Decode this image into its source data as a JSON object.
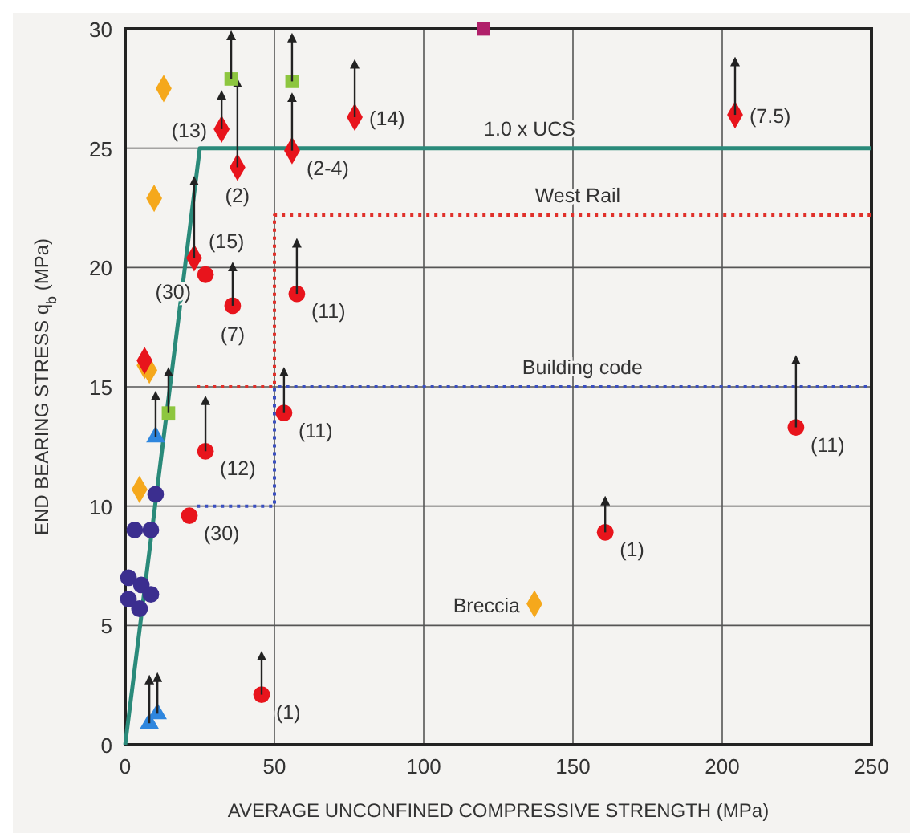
{
  "chart_data": {
    "type": "scatter",
    "xlabel": "AVERAGE UNCONFINED COMPRESSIVE STRENGTH (MPa)",
    "ylabel": "END BEARING STRESS q$_{b}$ (MPa)",
    "xlim": [
      0,
      250
    ],
    "ylim": [
      0,
      30
    ],
    "xticks": [
      0,
      50,
      100,
      150,
      200,
      250
    ],
    "yticks": [
      0,
      5,
      10,
      15,
      20,
      25,
      30
    ],
    "grid": true,
    "series": [
      {
        "type": "line",
        "color": "#2a8a7a",
        "line_style": "solid",
        "marker": "none",
        "x": [
          0,
          25,
          250
        ],
        "values": [
          0,
          25,
          25
        ]
      },
      {
        "type": "line",
        "color": "#e0302a",
        "line_style": "dotted",
        "marker": "none",
        "x": [
          24,
          50,
          50,
          250
        ],
        "values": [
          15,
          15,
          22.2,
          22.2
        ]
      },
      {
        "type": "line",
        "color": "#3a4fc0",
        "line_style": "dotted",
        "marker": "none",
        "x": [
          24,
          50,
          50,
          250
        ],
        "values": [
          10,
          10,
          15,
          15
        ]
      },
      {
        "color": "#f5a81c",
        "marker": "diamond",
        "x": [
          12.9,
          9.7,
          8.1,
          6.5,
          4.8,
          137.1
        ],
        "values": [
          27.5,
          22.9,
          15.7,
          15.9,
          10.7,
          5.9
        ]
      },
      {
        "color": "#e8141c",
        "marker": "diamond",
        "x": [
          32.3,
          37.6,
          55.9,
          76.9,
          204.3,
          23.1,
          6.5
        ],
        "values": [
          25.8,
          24.2,
          24.9,
          26.3,
          26.4,
          20.4,
          16.1
        ],
        "errors": [
          [
            25.8,
            27.1
          ],
          [
            24.2,
            27.6
          ],
          [
            24.9,
            27.0
          ],
          [
            26.3,
            28.4
          ],
          [
            26.4,
            28.5
          ],
          [
            20.4,
            23.5
          ],
          null
        ]
      },
      {
        "color": "#e8141c",
        "marker": "circle",
        "x": [
          26.9,
          36,
          57.5,
          53.2,
          26.9,
          21.5,
          45.7,
          160.8,
          224.7
        ],
        "values": [
          19.7,
          18.4,
          18.9,
          13.9,
          12.3,
          9.6,
          2.1,
          8.9,
          13.3
        ],
        "errors": [
          null,
          [
            18.4,
            19.9
          ],
          [
            18.9,
            20.9
          ],
          [
            13.9,
            15.5
          ],
          [
            12.3,
            14.3
          ],
          null,
          [
            2.1,
            3.6
          ],
          [
            8.9,
            10.1
          ],
          [
            13.3,
            16.0
          ]
        ]
      },
      {
        "color": "#8dc63f",
        "marker": "square",
        "x": [
          35.5,
          55.9,
          14.5
        ],
        "values": [
          27.9,
          27.8,
          13.9
        ],
        "errors": [
          [
            27.9,
            29.6
          ],
          [
            27.8,
            29.5
          ],
          [
            13.9,
            15.5
          ]
        ]
      },
      {
        "color": "#2e86de",
        "marker": "triangle",
        "x": [
          10.2,
          8.1,
          10.8
        ],
        "values": [
          12.9,
          0.9,
          1.3
        ],
        "errors": [
          [
            12.9,
            14.5
          ],
          [
            0.9,
            2.6
          ],
          [
            1.3,
            2.7
          ]
        ]
      },
      {
        "color": "#3b2e8f",
        "marker": "circle",
        "x": [
          10.2,
          3.2,
          8.6,
          1.1,
          5.4,
          8.6,
          1.1,
          4.8
        ],
        "values": [
          10.5,
          9.0,
          9.0,
          7.0,
          6.7,
          6.3,
          6.1,
          5.7
        ]
      },
      {
        "color": "#b0206a",
        "marker": "square",
        "x": [
          120
        ],
        "values": [
          30
        ]
      }
    ],
    "annotations": [
      {
        "text": "(13)",
        "x": 32.3,
        "y": 25.8
      },
      {
        "text": "(2)",
        "x": 37.6,
        "y": 24.2
      },
      {
        "text": "(2-4)",
        "x": 55.9,
        "y": 24.9
      },
      {
        "text": "(14)",
        "x": 76.9,
        "y": 26.3
      },
      {
        "text": "(7.5)",
        "x": 204.3,
        "y": 26.4
      },
      {
        "text": "(15)",
        "x": 23.1,
        "y": 20.4
      },
      {
        "text": "(30)",
        "x": 26.9,
        "y": 19.7
      },
      {
        "text": "(7)",
        "x": 36,
        "y": 18.4
      },
      {
        "text": "(11)",
        "x": 57.5,
        "y": 18.9
      },
      {
        "text": "(11)",
        "x": 53.2,
        "y": 13.9
      },
      {
        "text": "(12)",
        "x": 26.9,
        "y": 12.3
      },
      {
        "text": "(30)",
        "x": 21.5,
        "y": 9.6
      },
      {
        "text": "(1)",
        "x": 45.7,
        "y": 2.1
      },
      {
        "text": "(1)",
        "x": 160.8,
        "y": 8.9
      },
      {
        "text": "(11)",
        "x": 224.7,
        "y": 13.3
      },
      {
        "text": "1.0 x UCS",
        "x": 135.5,
        "y": 25
      },
      {
        "text": "West Rail",
        "x": 151.6,
        "y": 22.2
      },
      {
        "text": "Building code",
        "x": 153.2,
        "y": 15
      },
      {
        "text": "Breccia",
        "x": 137.1,
        "y": 5.9
      }
    ]
  }
}
